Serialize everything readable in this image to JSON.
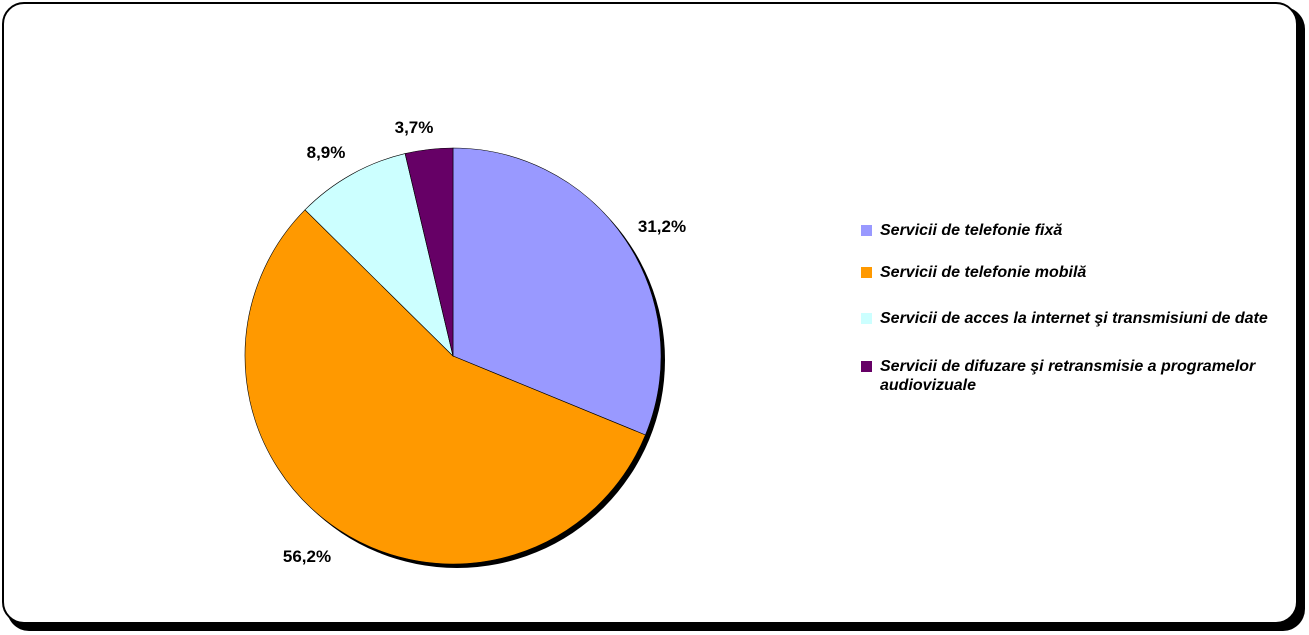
{
  "chart_data": {
    "type": "pie",
    "categories": [
      "Servicii de telefonie fixă",
      "Servicii de telefonie mobilă",
      "Servicii de acces la internet şi transmisiuni de date",
      "Servicii de difuzare şi retransmisie a programelor audiovizuale"
    ],
    "values": [
      31.2,
      56.2,
      8.9,
      3.7
    ],
    "data_labels": [
      "31,2%",
      "56,2%",
      "8,9%",
      "3,7%"
    ],
    "colors": [
      "#9999FF",
      "#FF9900",
      "#CCFFFF",
      "#660066"
    ],
    "start_angle_deg": 0,
    "direction": "clockwise",
    "legend": "right"
  },
  "legend": {
    "items": [
      {
        "label": "Servicii de telefonie fixă",
        "color": "#9999FF"
      },
      {
        "label": "Servicii de telefonie mobilă",
        "color": "#FF9900"
      },
      {
        "label": "Servicii de acces la internet şi transmisiuni de date",
        "color": "#CCFFFF"
      },
      {
        "label": "Servicii de difuzare şi retransmisie a programelor audiovizuale",
        "color": "#660066"
      }
    ]
  }
}
